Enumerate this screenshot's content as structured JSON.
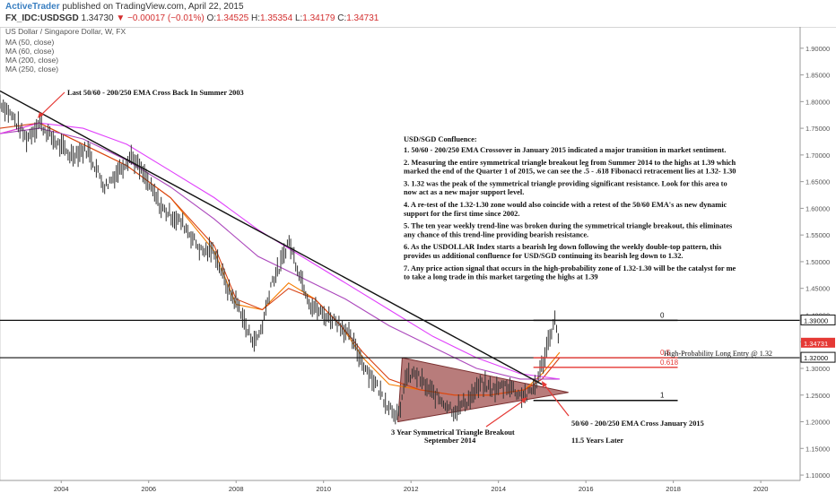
{
  "header": {
    "publisher": "ActiveTrader",
    "published_text": "published on TradingView.com, April 22, 2015",
    "symbol": "FX_IDC:USDSGD",
    "last": "1.34730",
    "change": "−0.00017 (−0.01%)",
    "o_label": "O:",
    "o_val": "1.34525",
    "h_label": "H:",
    "h_val": "1.35354",
    "l_label": "L:",
    "l_val": "1.34179",
    "c_label": "C:",
    "c_val": "1.34731"
  },
  "legend": {
    "title": "US Dollar / Singapore Dollar, W, FX",
    "items": [
      "MA (50, close)",
      "MA (60, close)",
      "MA (200, close)",
      "MA (250, close)"
    ]
  },
  "annotations": {
    "cross_2003": "Last 50/60 - 200/250 EMA Cross Back In Summer 2003",
    "confluence_title": "USD/SGD Confluence:",
    "confluence_lines": [
      "1. 50/60 - 200/250 EMA Crossover in January 2015 indicated a major transition in market sentiment.",
      "",
      "2. Measuring the entire symmetrical triangle breakout leg from Summer 2014 to the highs at 1.39 which",
      "marked the end of the Quarter 1 of 2015, we can see the .5 - .618 Fibonacci retracement lies at 1.32- 1.30",
      "",
      "3. 1.32 was the peak of the symmetrical triangle providing significant resistance. Look for this area to",
      "now act as a new major support level.",
      "",
      "4. A re-test of the 1.32-1.30 zone would also coincide with a retest of the 50/60 EMA's as new dynamic",
      "support for the first time since 2002.",
      "",
      "5. The ten year weekly trend-line was broken during the symmetrical triangle breakout, this eliminates",
      "any chance of this trend-line providing bearish resistance.",
      "",
      "6. As the USDOLLAR Index starts a bearish leg down following the weekly double-top pattern, this",
      "provides us additional confluence for USD/SGD continuing its bearish leg down to 1.32.",
      "",
      "7. Any price action signal that occurs in the high-probability zone of 1.32-1.30 will be the catalyst for me",
      "to take a long trade in this market targeting the highs at 1.39"
    ],
    "entry": "High-Probability Long Entry @ 1.32",
    "triangle_1": "3 Year Symmetrical Triangle Breakout",
    "triangle_2": "September 2014",
    "cross_2015": "50/60 - 200/250 EMA Cross January 2015",
    "years_later": "11.5 Years Later"
  },
  "fib": {
    "l0": "0",
    "l05": "0.5",
    "l0618": "0.618",
    "l1": "1"
  },
  "price_tags": {
    "p139": "1.39000",
    "p13473": "1.34731",
    "p132": "1.32000"
  },
  "colors": {
    "price": "#333333",
    "ma50": "#f57c00",
    "ma60": "#d84315",
    "ma200": "#ab47bc",
    "ma250": "#e040fb",
    "fib_red": "#e53935",
    "triangle_fill": "#a0504f",
    "last_tag": "#e53935"
  },
  "chart_data": {
    "type": "line",
    "title": "US Dollar / Singapore Dollar, W, FX",
    "xlabel": "",
    "ylabel": "",
    "xlim": [
      2002.6,
      2020.9
    ],
    "ylim": [
      1.09,
      1.94
    ],
    "x_ticks": [
      "2004",
      "2006",
      "2008",
      "2010",
      "2012",
      "2014",
      "2016",
      "2018",
      "2020"
    ],
    "y_ticks": [
      "1.10000",
      "1.15000",
      "1.20000",
      "1.25000",
      "1.30000",
      "1.35000",
      "1.40000",
      "1.45000",
      "1.50000",
      "1.55000",
      "1.60000",
      "1.65000",
      "1.70000",
      "1.75000",
      "1.80000",
      "1.85000",
      "1.90000"
    ],
    "grid": false,
    "price_anchors": [
      [
        2002.6,
        1.8
      ],
      [
        2002.9,
        1.77
      ],
      [
        2003.2,
        1.73
      ],
      [
        2003.5,
        1.76
      ],
      [
        2003.8,
        1.73
      ],
      [
        2004.2,
        1.7
      ],
      [
        2004.6,
        1.71
      ],
      [
        2005.0,
        1.64
      ],
      [
        2005.3,
        1.67
      ],
      [
        2005.6,
        1.7
      ],
      [
        2005.9,
        1.66
      ],
      [
        2006.3,
        1.6
      ],
      [
        2006.8,
        1.57
      ],
      [
        2007.2,
        1.52
      ],
      [
        2007.5,
        1.52
      ],
      [
        2007.8,
        1.45
      ],
      [
        2008.1,
        1.41
      ],
      [
        2008.25,
        1.37
      ],
      [
        2008.45,
        1.35
      ],
      [
        2008.6,
        1.38
      ],
      [
        2008.8,
        1.46
      ],
      [
        2009.0,
        1.49
      ],
      [
        2009.2,
        1.54
      ],
      [
        2009.4,
        1.49
      ],
      [
        2009.7,
        1.42
      ],
      [
        2010.0,
        1.4
      ],
      [
        2010.3,
        1.39
      ],
      [
        2010.6,
        1.36
      ],
      [
        2010.9,
        1.31
      ],
      [
        2011.2,
        1.27
      ],
      [
        2011.4,
        1.24
      ],
      [
        2011.6,
        1.22
      ],
      [
        2011.75,
        1.21
      ],
      [
        2011.85,
        1.28
      ],
      [
        2012.1,
        1.29
      ],
      [
        2012.4,
        1.26
      ],
      [
        2012.7,
        1.24
      ],
      [
        2013.0,
        1.22
      ],
      [
        2013.3,
        1.24
      ],
      [
        2013.6,
        1.27
      ],
      [
        2013.9,
        1.26
      ],
      [
        2014.2,
        1.27
      ],
      [
        2014.5,
        1.25
      ],
      [
        2014.7,
        1.25
      ],
      [
        2014.9,
        1.28
      ],
      [
        2015.05,
        1.32
      ],
      [
        2015.2,
        1.37
      ],
      [
        2015.3,
        1.39
      ],
      [
        2015.4,
        1.35
      ]
    ],
    "series": [
      {
        "name": "MA (50, close)",
        "color": "#f57c00",
        "points": [
          [
            2002.6,
            1.74
          ],
          [
            2003.5,
            1.76
          ],
          [
            2004.5,
            1.72
          ],
          [
            2005.5,
            1.68
          ],
          [
            2006.5,
            1.62
          ],
          [
            2007.5,
            1.52
          ],
          [
            2008.0,
            1.42
          ],
          [
            2008.6,
            1.41
          ],
          [
            2009.2,
            1.46
          ],
          [
            2009.8,
            1.43
          ],
          [
            2010.4,
            1.38
          ],
          [
            2010.9,
            1.32
          ],
          [
            2011.5,
            1.27
          ],
          [
            2012.2,
            1.26
          ],
          [
            2013.0,
            1.25
          ],
          [
            2013.8,
            1.25
          ],
          [
            2014.6,
            1.26
          ],
          [
            2015.0,
            1.29
          ],
          [
            2015.4,
            1.33
          ]
        ]
      },
      {
        "name": "MA (60, close)",
        "color": "#d84315",
        "points": [
          [
            2002.6,
            1.75
          ],
          [
            2003.5,
            1.76
          ],
          [
            2004.5,
            1.72
          ],
          [
            2005.5,
            1.68
          ],
          [
            2006.5,
            1.62
          ],
          [
            2007.5,
            1.53
          ],
          [
            2008.0,
            1.43
          ],
          [
            2008.6,
            1.41
          ],
          [
            2009.2,
            1.45
          ],
          [
            2009.8,
            1.43
          ],
          [
            2010.4,
            1.38
          ],
          [
            2010.9,
            1.33
          ],
          [
            2011.5,
            1.28
          ],
          [
            2012.2,
            1.26
          ],
          [
            2013.0,
            1.25
          ],
          [
            2013.8,
            1.25
          ],
          [
            2014.6,
            1.26
          ],
          [
            2015.0,
            1.28
          ],
          [
            2015.4,
            1.32
          ]
        ]
      },
      {
        "name": "MA (200, close)",
        "color": "#ab47bc",
        "points": [
          [
            2002.6,
            1.74
          ],
          [
            2003.5,
            1.75
          ],
          [
            2004.5,
            1.73
          ],
          [
            2005.5,
            1.69
          ],
          [
            2006.5,
            1.64
          ],
          [
            2007.5,
            1.58
          ],
          [
            2008.5,
            1.51
          ],
          [
            2009.5,
            1.47
          ],
          [
            2010.5,
            1.43
          ],
          [
            2011.5,
            1.38
          ],
          [
            2012.5,
            1.34
          ],
          [
            2013.5,
            1.3
          ],
          [
            2014.5,
            1.28
          ],
          [
            2015.4,
            1.28
          ]
        ]
      },
      {
        "name": "MA (250, close)",
        "color": "#e040fb",
        "points": [
          [
            2002.6,
            1.74
          ],
          [
            2003.5,
            1.76
          ],
          [
            2004.5,
            1.75
          ],
          [
            2005.5,
            1.72
          ],
          [
            2006.5,
            1.67
          ],
          [
            2007.5,
            1.62
          ],
          [
            2008.5,
            1.56
          ],
          [
            2009.5,
            1.51
          ],
          [
            2010.5,
            1.46
          ],
          [
            2011.5,
            1.41
          ],
          [
            2012.5,
            1.36
          ],
          [
            2013.5,
            1.32
          ],
          [
            2014.5,
            1.29
          ],
          [
            2015.4,
            1.28
          ]
        ]
      }
    ],
    "trendline": [
      [
        2002.6,
        1.82
      ],
      [
        2015.0,
        1.27
      ]
    ],
    "triangle": [
      [
        2011.8,
        1.32
      ],
      [
        2011.7,
        1.2
      ],
      [
        2015.6,
        1.255
      ]
    ],
    "hlines": [
      1.39,
      1.32,
      1.24
    ],
    "fib_lines": [
      {
        "level": "0",
        "price": 1.39
      },
      {
        "level": "0.5",
        "price": 1.32
      },
      {
        "level": "0.618",
        "price": 1.302
      },
      {
        "level": "1",
        "price": 1.24
      }
    ]
  }
}
